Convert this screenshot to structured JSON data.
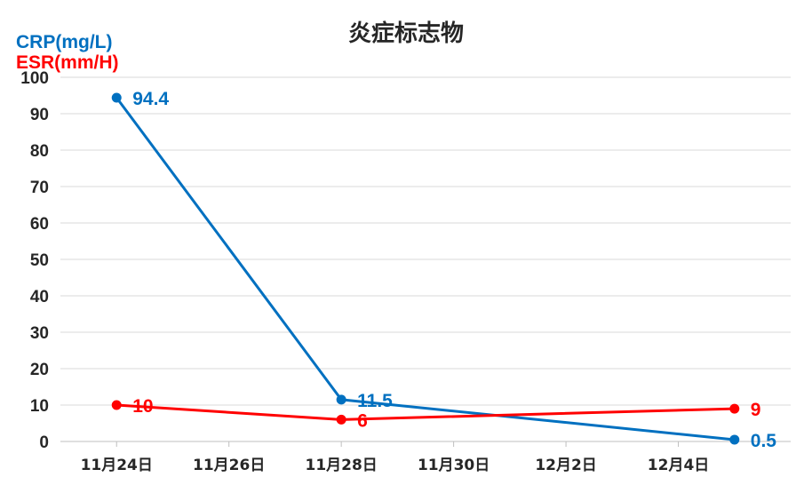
{
  "chart_data": {
    "type": "line",
    "title": "炎症标志物",
    "x_axis": {
      "type": "date",
      "range": [
        "2023-11-23",
        "2023-12-06"
      ],
      "ticks": [
        "2023-11-24",
        "2023-11-26",
        "2023-11-28",
        "2023-11-30",
        "2023-12-02",
        "2023-12-04"
      ],
      "tick_labels": [
        "11月24日",
        "11月26日",
        "11月28日",
        "11月30日",
        "12月2日",
        "12月4日"
      ]
    },
    "y_axis": {
      "range": [
        0,
        100
      ],
      "ticks": [
        0,
        10,
        20,
        30,
        40,
        50,
        60,
        70,
        80,
        90,
        100
      ]
    },
    "grid": true,
    "legend_placement": "top-left",
    "series": [
      {
        "name": "CRP(mg/L)",
        "color": "#0070c0",
        "points": [
          {
            "x": "2023-11-24",
            "y": 94.4,
            "label": "94.4"
          },
          {
            "x": "2023-11-28",
            "y": 11.5,
            "label": "11.5"
          },
          {
            "x": "2023-12-05",
            "y": 0.5,
            "label": "0.5"
          }
        ]
      },
      {
        "name": "ESR(mm/H)",
        "color": "#ff0000",
        "points": [
          {
            "x": "2023-11-24",
            "y": 10,
            "label": "10"
          },
          {
            "x": "2023-11-28",
            "y": 6,
            "label": "6"
          },
          {
            "x": "2023-12-05",
            "y": 9,
            "label": "9"
          }
        ]
      }
    ]
  }
}
